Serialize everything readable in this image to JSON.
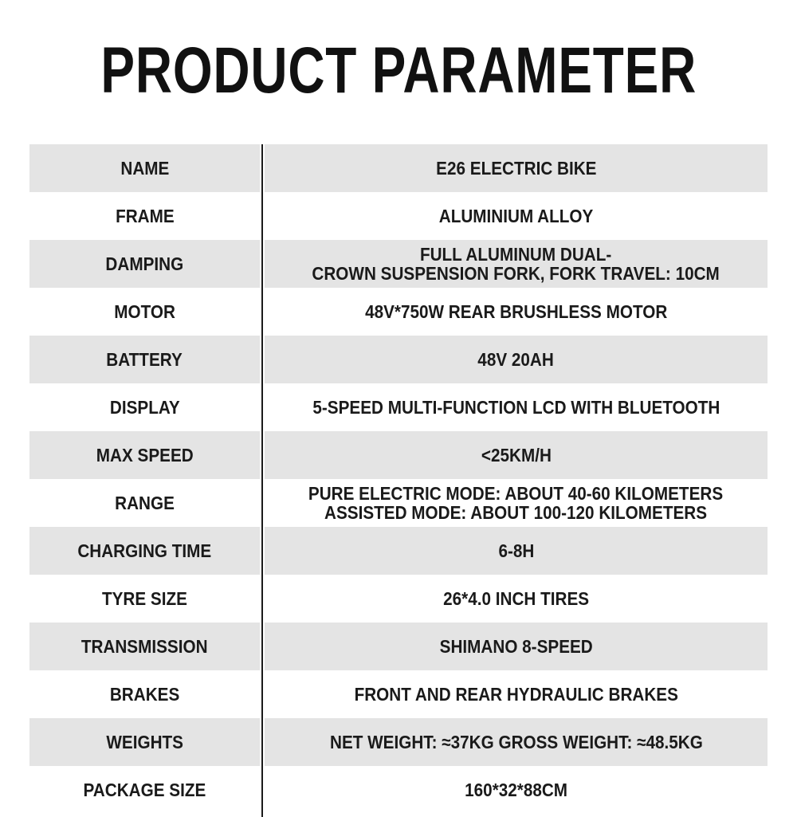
{
  "title": "PRODUCT PARAMETER",
  "rows": [
    {
      "label": "NAME",
      "value": "E26 ELECTRIC BIKE"
    },
    {
      "label": "FRAME",
      "value": "ALUMINIUM ALLOY"
    },
    {
      "label": "DAMPING",
      "value": "FULL ALUMINUM DUAL-\nCROWN SUSPENSION FORK, FORK TRAVEL: 10CM"
    },
    {
      "label": "MOTOR",
      "value": "48V*750W REAR BRUSHLESS MOTOR"
    },
    {
      "label": "BATTERY",
      "value": "48V 20AH"
    },
    {
      "label": "DISPLAY",
      "value": "5-SPEED MULTI-FUNCTION LCD WITH BLUETOOTH"
    },
    {
      "label": "MAX SPEED",
      "value": "<25KM/H"
    },
    {
      "label": "RANGE",
      "value": "PURE ELECTRIC MODE: ABOUT 40-60 KILOMETERS\nASSISTED MODE: ABOUT 100-120 KILOMETERS"
    },
    {
      "label": "CHARGING TIME",
      "value": "6-8H"
    },
    {
      "label": "TYRE SIZE",
      "value": "26*4.0 INCH TIRES"
    },
    {
      "label": "TRANSMISSION",
      "value": "SHIMANO 8-SPEED"
    },
    {
      "label": "BRAKES",
      "value": "FRONT AND REAR HYDRAULIC BRAKES"
    },
    {
      "label": "WEIGHTS",
      "value": "NET WEIGHT: ≈37KG GROSS WEIGHT: ≈48.5KG"
    },
    {
      "label": "PACKAGE SIZE",
      "value": "160*32*88CM"
    }
  ],
  "colors": {
    "stripe": "#e4e4e4",
    "divider": "#1a1a1a",
    "text": "#1a1a1a"
  }
}
